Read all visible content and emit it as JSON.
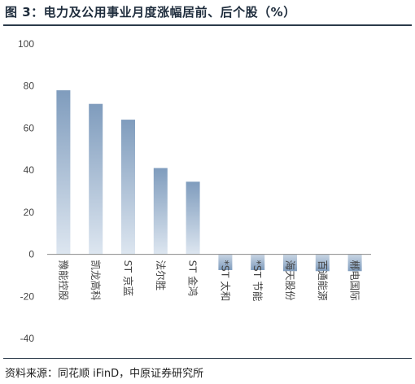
{
  "title": "图 3：电力及公用事业月度涨幅居前、后个股（%）",
  "source": "资料来源：同花顺 iFinD，中原证券研究所",
  "chart_data": {
    "type": "bar",
    "title": "",
    "xlabel": "",
    "ylabel": "",
    "ylim": [
      -40,
      100
    ],
    "yticks": [
      -40,
      -20,
      0,
      20,
      40,
      60,
      80,
      100
    ],
    "grid": false,
    "legend": "none",
    "categories": [
      "豫能控股",
      "凯龙高科",
      "ST 京蓝",
      "法尔胜",
      "ST 金鸿",
      "*ST 太和",
      "*ST 节能",
      "海天股份",
      "百通能源",
      "郴电国际"
    ],
    "values": [
      78,
      71.5,
      64,
      41,
      34.5,
      -7.5,
      -7.5,
      -8,
      -8,
      -8
    ],
    "colors": {
      "bar_top": "#7f9cbd",
      "bar_bottom": "#dde6f0",
      "neg_top": "#c9d6e4",
      "neg_bottom": "#7f9cbd",
      "axis": "#8a8a8a"
    }
  }
}
